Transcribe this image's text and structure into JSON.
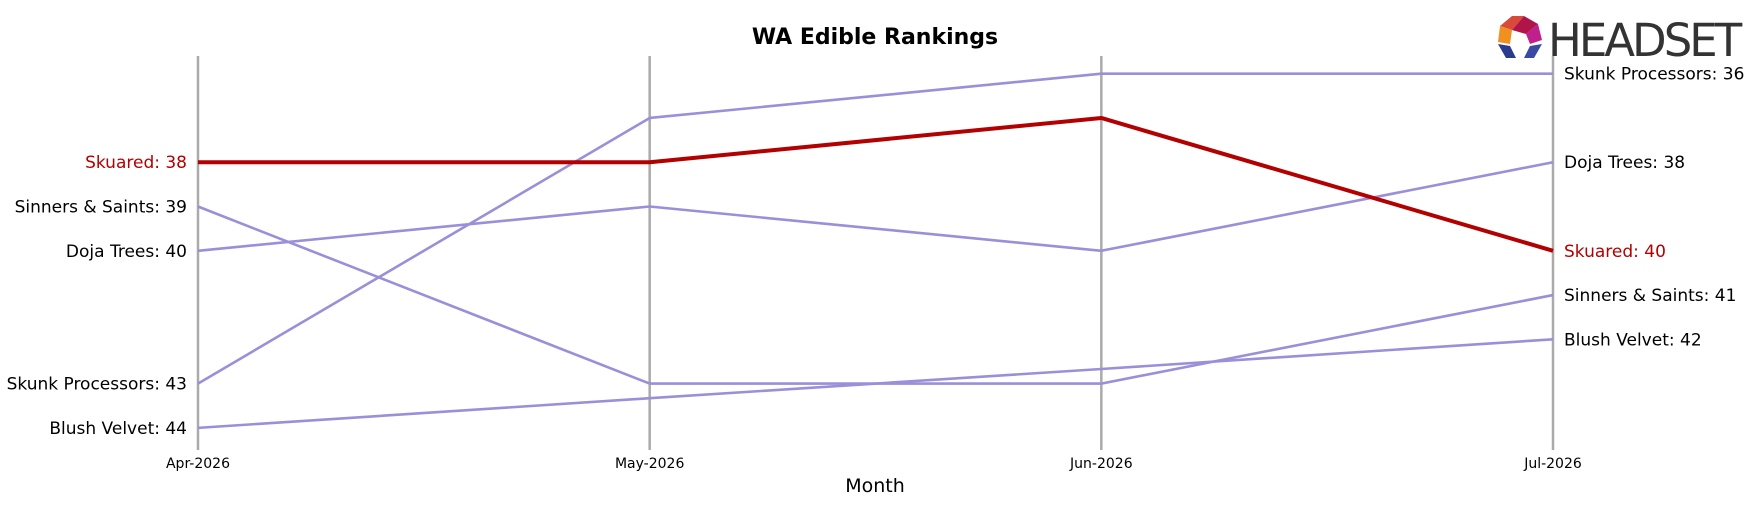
{
  "chart_data": {
    "type": "line",
    "title": "WA Edible Rankings",
    "xlabel": "Month",
    "ylabel": "",
    "categories": [
      "Apr-2026",
      "May-2026",
      "Jun-2026",
      "Jul-2026"
    ],
    "ylim": [
      44.5,
      35.6
    ],
    "y_inverted": true,
    "grid": "vertical lines at each month",
    "series": [
      {
        "name": "Skuared",
        "values": [
          38,
          38,
          37,
          40
        ],
        "color": "#b30000",
        "highlight": true
      },
      {
        "name": "Sinners & Saints",
        "values": [
          39,
          43,
          43,
          41
        ],
        "color": "#9a8fd8"
      },
      {
        "name": "Doja Trees",
        "values": [
          40,
          39,
          40,
          38
        ],
        "color": "#9a8fd8"
      },
      {
        "name": "Skunk Processors",
        "values": [
          43,
          37,
          36,
          36
        ],
        "color": "#9a8fd8"
      },
      {
        "name": "Blush Velvet",
        "values": [
          44,
          43.33,
          42.67,
          42
        ],
        "color": "#9a8fd8"
      }
    ],
    "start_labels": [
      {
        "text": "Skuared: 38",
        "series": 0
      },
      {
        "text": "Sinners & Saints: 39",
        "series": 1
      },
      {
        "text": "Doja Trees: 40",
        "series": 2
      },
      {
        "text": "Skunk Processors: 43",
        "series": 3
      },
      {
        "text": "Blush Velvet: 44",
        "series": 4
      }
    ],
    "end_labels": [
      {
        "text": "Skunk Processors: 36",
        "series": 3
      },
      {
        "text": "Doja Trees: 38",
        "series": 2
      },
      {
        "text": "Skuared: 40",
        "series": 0
      },
      {
        "text": "Sinners & Saints: 41",
        "series": 1
      },
      {
        "text": "Blush Velvet: 42",
        "series": 4
      }
    ]
  },
  "logo": {
    "text": "HEADSET"
  },
  "colors": {
    "grid": "#aaaaaa",
    "highlight": "#b30000",
    "other": "#9a8fd8"
  }
}
